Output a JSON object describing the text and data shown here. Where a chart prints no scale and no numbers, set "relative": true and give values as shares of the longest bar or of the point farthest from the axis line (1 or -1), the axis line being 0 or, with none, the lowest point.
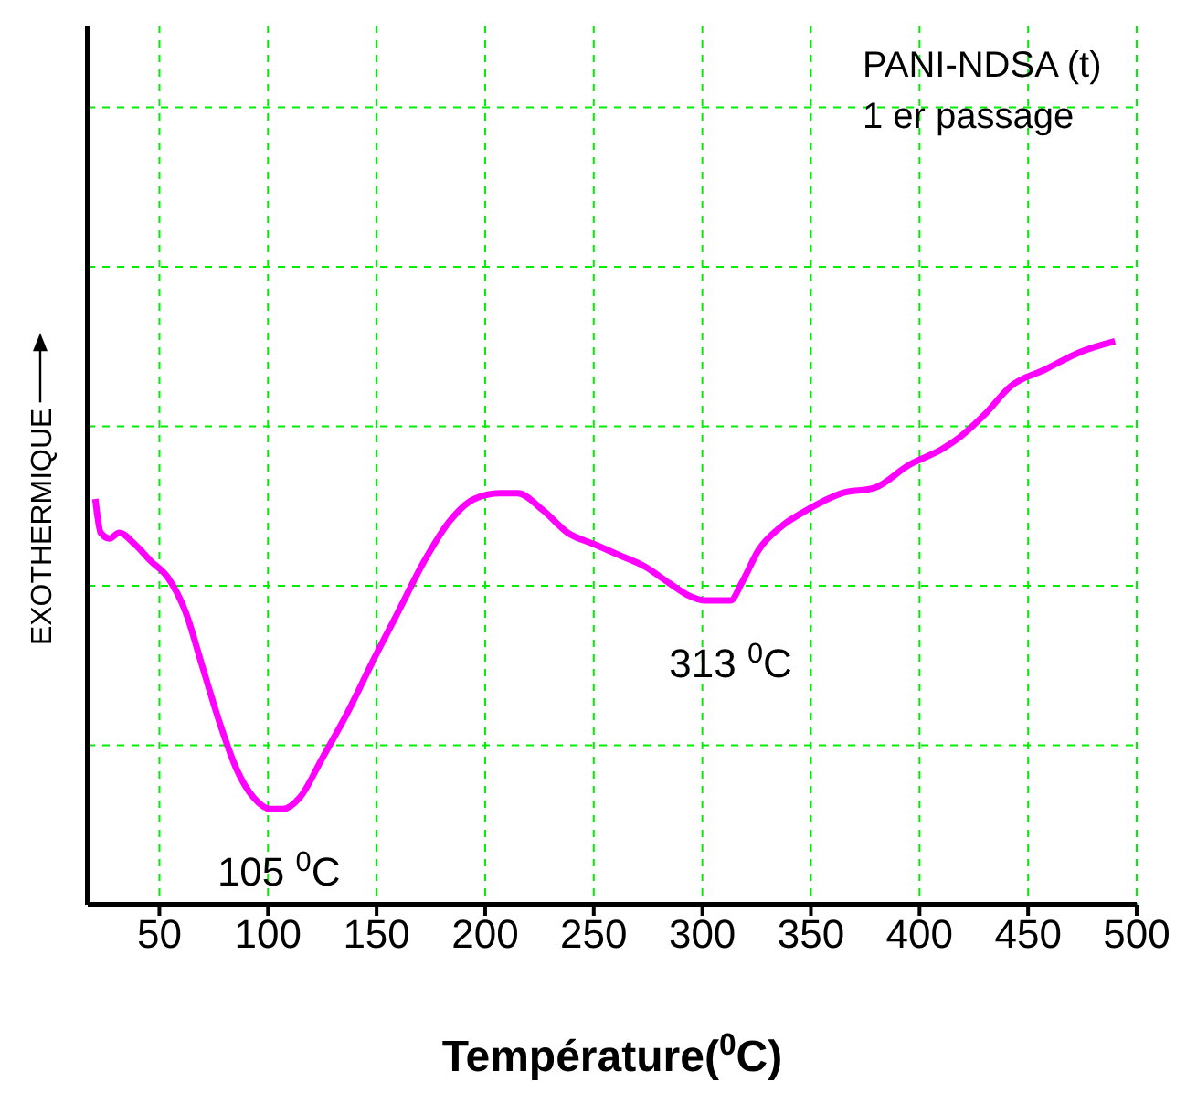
{
  "chart_data": {
    "type": "line",
    "relative": true,
    "xlabel": "Température($^{0}$C)",
    "ylabel": "EXOTHERMIQUE",
    "x": [
      20.5,
      23,
      27,
      31.5,
      38.6,
      46,
      54,
      62,
      70,
      78,
      85.6,
      93.4,
      101,
      107,
      114.6,
      125,
      136.5,
      148,
      160,
      172,
      183.5,
      195,
      207,
      215,
      226.6,
      238,
      250,
      262,
      273.6,
      285,
      293,
      301,
      313,
      318,
      326,
      336,
      348,
      364,
      379.5,
      395,
      411,
      418.6,
      430,
      442,
      458,
      473.5,
      490
    ],
    "series": [
      {
        "color": "#ff00ff",
        "values": [
          0.72,
          0.66,
          0.65,
          0.66,
          0.64,
          0.61,
          0.58,
          0.52,
          0.42,
          0.32,
          0.24,
          0.19,
          0.17,
          0.17,
          0.19,
          0.26,
          0.34,
          0.43,
          0.52,
          0.61,
          0.68,
          0.72,
          0.73,
          0.73,
          0.7,
          0.66,
          0.64,
          0.62,
          0.6,
          0.57,
          0.55,
          0.54,
          0.54,
          0.57,
          0.63,
          0.67,
          0.7,
          0.73,
          0.74,
          0.78,
          0.81,
          0.83,
          0.87,
          0.92,
          0.95,
          0.98,
          1
        ]
      }
    ],
    "xlim": [
      17,
      500
    ],
    "xticks": [
      50,
      100,
      150,
      200,
      250,
      300,
      350,
      400,
      450,
      500
    ],
    "grid": true,
    "marker": "none",
    "line_style": "solid",
    "annotations": [
      "PANI-NDSA (t)",
      "1 er passage",
      {
        "text": "105 $^{0}$C",
        "x": 105,
        "y": 0.17
      },
      {
        "text": "313 $^{0}$C",
        "x": 313,
        "y": 0.54
      }
    ]
  }
}
